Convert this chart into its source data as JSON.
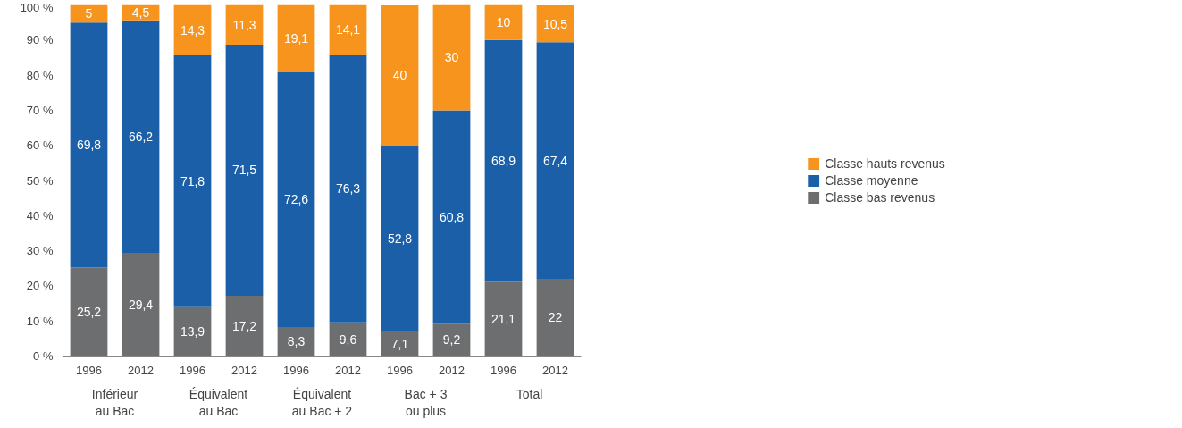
{
  "chart_data": {
    "type": "bar",
    "stacked": true,
    "categories": [
      "1996",
      "2012",
      "1996",
      "2012",
      "1996",
      "2012",
      "1996",
      "2012",
      "1996",
      "2012"
    ],
    "annotations": [
      "Inférieur\nau Bac",
      "Équivalent\nau Bac",
      "Équivalent\nau Bac + 2",
      "Bac + 3\nou plus",
      "Total"
    ],
    "series": [
      {
        "name": "Classe bas revenus",
        "color": "#6d6e70",
        "values": [
          25.2,
          29.4,
          13.9,
          17.2,
          8.3,
          9.6,
          7.1,
          9.2,
          21.1,
          22
        ],
        "value_labels": [
          "25,2",
          "29,4",
          "13,9",
          "17,2",
          "8,3",
          "9,6",
          "7,1",
          "9,2",
          "21,1",
          "22"
        ]
      },
      {
        "name": "Classe moyenne",
        "color": "#1a5fa8",
        "values": [
          69.8,
          66.2,
          71.8,
          71.5,
          72.6,
          76.3,
          52.8,
          60.8,
          68.9,
          67.4
        ],
        "value_labels": [
          "69,8",
          "66,2",
          "71,8",
          "71,5",
          "72,6",
          "76,3",
          "52,8",
          "60,8",
          "68,9",
          "67,4"
        ]
      },
      {
        "name": "Classe hauts revenus",
        "color": "#f7941d",
        "values": [
          5,
          4.5,
          14.3,
          11.3,
          19.1,
          14.1,
          40,
          30,
          10,
          10.5
        ],
        "value_labels": [
          "5",
          "4,5",
          "14,3",
          "11,3",
          "19,1",
          "14,1",
          "40",
          "30",
          "10",
          "10,5"
        ]
      }
    ],
    "ylim": [
      0,
      100
    ],
    "yticks": [
      {
        "value": 0,
        "label": "0 %"
      },
      {
        "value": 10,
        "label": "10 %"
      },
      {
        "value": 20,
        "label": "20 %"
      },
      {
        "value": 30,
        "label": "30 %"
      },
      {
        "value": 40,
        "label": "40 %"
      },
      {
        "value": 50,
        "label": "50 %"
      },
      {
        "value": 60,
        "label": "60 %"
      },
      {
        "value": 70,
        "label": "70 %"
      },
      {
        "value": 80,
        "label": "80 %"
      },
      {
        "value": 90,
        "label": "90 %"
      },
      {
        "value": 100,
        "label": "100 %"
      }
    ],
    "grid": false,
    "legend": "right"
  }
}
